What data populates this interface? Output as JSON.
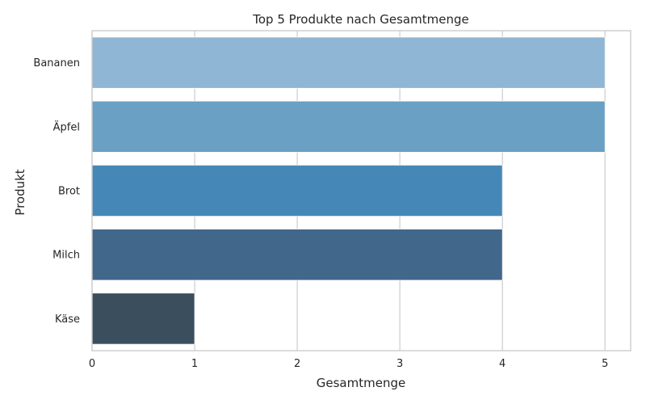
{
  "chart_data": {
    "type": "bar",
    "orientation": "horizontal",
    "title": "Top 5 Produkte nach Gesamtmenge",
    "xlabel": "Gesamtmenge",
    "ylabel": "Produkt",
    "categories": [
      "Bananen",
      "Äpfel",
      "Brot",
      "Milch",
      "Käse"
    ],
    "values": [
      5,
      5,
      4,
      4,
      1
    ],
    "colors": [
      "#8fb6d4",
      "#69a0c3",
      "#4588b7",
      "#41678a",
      "#3a4e5e"
    ],
    "xlim": [
      0,
      5.25
    ],
    "xticks": [
      0,
      1,
      2,
      3,
      4,
      5
    ],
    "grid": true,
    "grid_axis": "x",
    "legend": false
  }
}
